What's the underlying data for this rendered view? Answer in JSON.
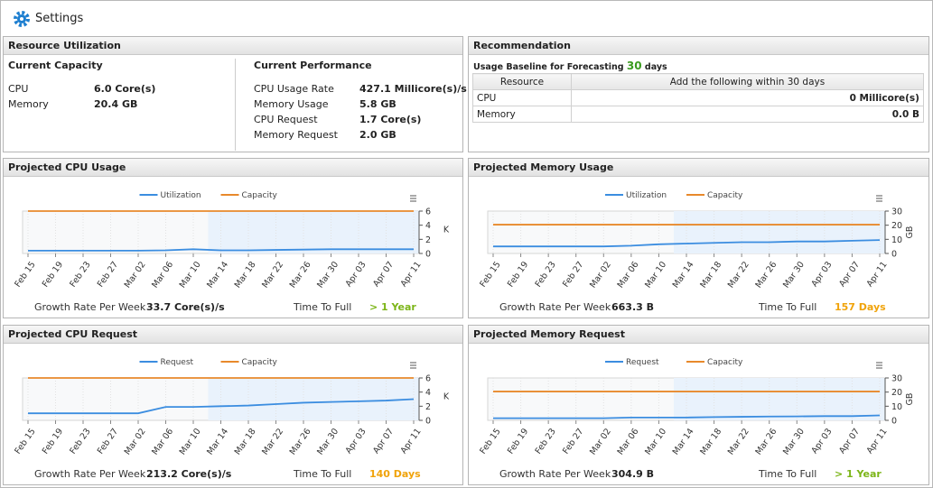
{
  "header": {
    "title": "Settings"
  },
  "resource_utilization": {
    "title": "Resource Utilization",
    "current_capacity": {
      "title": "Current Capacity",
      "rows": [
        [
          "CPU",
          "6.0 Core(s)"
        ],
        [
          "Memory",
          "20.4 GB"
        ]
      ]
    },
    "current_performance": {
      "title": "Current Performance",
      "rows": [
        [
          "CPU Usage Rate",
          "427.1 Millicore(s)/s"
        ],
        [
          "Memory Usage",
          "5.8 GB"
        ],
        [
          "CPU Request",
          "1.7 Core(s)"
        ],
        [
          "Memory Request",
          "2.0 GB"
        ]
      ]
    }
  },
  "recommendation": {
    "title": "Recommendation",
    "baseline_label": "Usage Baseline for Forecasting",
    "baseline_days": "30",
    "baseline_unit": "days",
    "table": {
      "headers": [
        "Resource",
        "Add the following within 30 days"
      ],
      "rows": [
        [
          "CPU",
          "0 Millicore(s)"
        ],
        [
          "Memory",
          "0.0 B"
        ]
      ]
    }
  },
  "chart_data": [
    {
      "type": "line",
      "title": "Projected CPU Usage",
      "x": [
        "Feb 15",
        "Feb 19",
        "Feb 23",
        "Feb 27",
        "Mar 02",
        "Mar 06",
        "Mar 10",
        "Mar 14",
        "Mar 18",
        "Mar 22",
        "Mar 26",
        "Mar 30",
        "Apr 03",
        "Apr 07",
        "Apr 11"
      ],
      "forecast_start": "Mar 14",
      "series": [
        {
          "name": "Utilization",
          "color": "#3b8de0",
          "values": [
            0.4,
            0.4,
            0.4,
            0.4,
            0.4,
            0.45,
            0.6,
            0.45,
            0.45,
            0.5,
            0.55,
            0.6,
            0.6,
            0.6,
            0.6
          ]
        },
        {
          "name": "Capacity",
          "color": "#e8892b",
          "values": [
            6,
            6,
            6,
            6,
            6,
            6,
            6,
            6,
            6,
            6,
            6,
            6,
            6,
            6,
            6
          ]
        }
      ],
      "ylim": [
        0,
        6
      ],
      "yticks": [
        0,
        2,
        4,
        6
      ],
      "y_label": "K",
      "legend": "top",
      "growth_label": "Growth Rate Per Week",
      "growth_value": "33.7 Core(s)/s",
      "time_label": "Time To Full",
      "time_value": "> 1 Year",
      "time_color": "#7cb518"
    },
    {
      "type": "line",
      "title": "Projected Memory Usage",
      "x": [
        "Feb 15",
        "Feb 19",
        "Feb 23",
        "Feb 27",
        "Mar 02",
        "Mar 06",
        "Mar 10",
        "Mar 14",
        "Mar 18",
        "Mar 22",
        "Mar 26",
        "Mar 30",
        "Apr 03",
        "Apr 07",
        "Apr 11"
      ],
      "forecast_start": "Mar 14",
      "series": [
        {
          "name": "Utilization",
          "color": "#3b8de0",
          "values": [
            5,
            5,
            5,
            5,
            5,
            5.5,
            6.5,
            7,
            7.5,
            8,
            8,
            8.5,
            8.5,
            9,
            9.5
          ]
        },
        {
          "name": "Capacity",
          "color": "#e8892b",
          "values": [
            20.4,
            20.4,
            20.4,
            20.4,
            20.4,
            20.4,
            20.4,
            20.4,
            20.4,
            20.4,
            20.4,
            20.4,
            20.4,
            20.4,
            20.4
          ]
        }
      ],
      "ylim": [
        0,
        30
      ],
      "yticks": [
        0,
        10,
        20,
        30
      ],
      "y_label": "GB",
      "legend": "top",
      "growth_label": "Growth Rate Per Week",
      "growth_value": "663.3 B",
      "time_label": "Time To Full",
      "time_value": "157 Days",
      "time_color": "#f0a30a"
    },
    {
      "type": "line",
      "title": "Projected CPU Request",
      "x": [
        "Feb 15",
        "Feb 19",
        "Feb 23",
        "Feb 27",
        "Mar 02",
        "Mar 06",
        "Mar 10",
        "Mar 14",
        "Mar 18",
        "Mar 22",
        "Mar 26",
        "Mar 30",
        "Apr 03",
        "Apr 07",
        "Apr 11"
      ],
      "forecast_start": "Mar 14",
      "series": [
        {
          "name": "Request",
          "color": "#3b8de0",
          "values": [
            1,
            1,
            1,
            1,
            1,
            1.9,
            1.9,
            2,
            2.1,
            2.3,
            2.5,
            2.6,
            2.7,
            2.8,
            3
          ]
        },
        {
          "name": "Capacity",
          "color": "#e8892b",
          "values": [
            6,
            6,
            6,
            6,
            6,
            6,
            6,
            6,
            6,
            6,
            6,
            6,
            6,
            6,
            6
          ]
        }
      ],
      "ylim": [
        0,
        6
      ],
      "yticks": [
        0,
        2,
        4,
        6
      ],
      "y_label": "K",
      "legend": "top",
      "growth_label": "Growth Rate Per Week",
      "growth_value": "213.2 Core(s)/s",
      "time_label": "Time To Full",
      "time_value": "140 Days",
      "time_color": "#f0a30a"
    },
    {
      "type": "line",
      "title": "Projected Memory Request",
      "x": [
        "Feb 15",
        "Feb 19",
        "Feb 23",
        "Feb 27",
        "Mar 02",
        "Mar 06",
        "Mar 10",
        "Mar 14",
        "Mar 18",
        "Mar 22",
        "Mar 26",
        "Mar 30",
        "Apr 03",
        "Apr 07",
        "Apr 11"
      ],
      "forecast_start": "Mar 14",
      "series": [
        {
          "name": "Request",
          "color": "#3b8de0",
          "values": [
            1.5,
            1.5,
            1.5,
            1.5,
            1.5,
            2,
            2,
            2,
            2.3,
            2.5,
            2.7,
            2.8,
            3,
            3,
            3.5
          ]
        },
        {
          "name": "Capacity",
          "color": "#e8892b",
          "values": [
            20.4,
            20.4,
            20.4,
            20.4,
            20.4,
            20.4,
            20.4,
            20.4,
            20.4,
            20.4,
            20.4,
            20.4,
            20.4,
            20.4,
            20.4
          ]
        }
      ],
      "ylim": [
        0,
        30
      ],
      "yticks": [
        0,
        10,
        20,
        30
      ],
      "y_label": "GB",
      "legend": "top",
      "growth_label": "Growth Rate Per Week",
      "growth_value": "304.9 B",
      "time_label": "Time To Full",
      "time_value": "> 1 Year",
      "time_color": "#7cb518"
    }
  ]
}
